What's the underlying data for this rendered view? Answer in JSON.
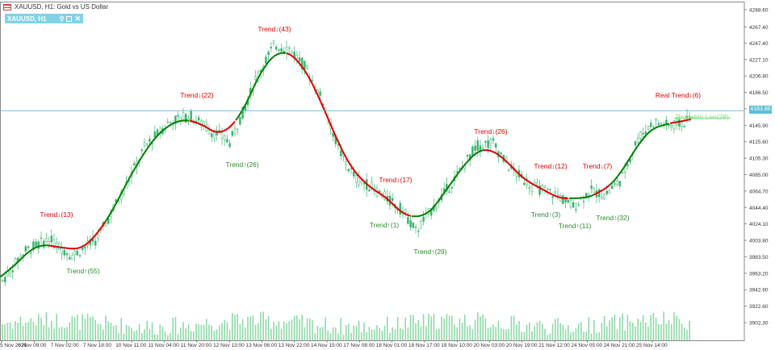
{
  "header": {
    "title": "XAUUSD, H1:  Gold vs US Dollar",
    "indicator_label": "XAUUSD, H1"
  },
  "icons": {
    "menu": "chart-menu-icon",
    "pin": "pin-icon",
    "maximize": "maximize-icon",
    "close": "close-icon"
  },
  "colors": {
    "uptrend": "#008000",
    "downtrend": "#e00000",
    "up_label": "#2e8b2e",
    "down_label": "#d42020",
    "candle": "#3cb371",
    "volume": "#8fd9a8",
    "price_line": "#5bbfd6",
    "probable_label": "#7be07b"
  },
  "price_tag": "4163.86",
  "chart_data": {
    "type": "candlestick",
    "symbol": "XAUUSD",
    "timeframe": "H1",
    "y_ticks": [
      "4288.60",
      "4267.40",
      "4247.40",
      "4227.10",
      "4206.80",
      "4186.50",
      "4166.20",
      "4145.90",
      "4125.60",
      "4105.30",
      "4085.00",
      "4064.70",
      "4044.40",
      "4024.10",
      "4003.80",
      "3983.50",
      "3963.20",
      "3942.90",
      "3922.60",
      "3902.30"
    ],
    "x_ticks": [
      "5 Nov 2025",
      "6 Nov 09:00",
      "7 Nov 02:00",
      "7 Nov 18:00",
      "10 Nov 11:00",
      "11 Nov 04:00",
      "11 Nov 20:00",
      "12 Nov 13:00",
      "13 Nov 06:00",
      "13 Nov 22:00",
      "14 Nov 15:00",
      "17 Nov 08:00",
      "18 Nov 01:00",
      "18 Nov 17:00",
      "19 Nov 10:00",
      "20 Nov 03:00",
      "20 Nov 19:00",
      "21 Nov 12:00",
      "24 Nov 05:00",
      "24 Nov 21:00",
      "25 Nov 14:00"
    ],
    "current_price": 4163.86,
    "annotations": [
      {
        "text": "Trend↓(13)",
        "dir": "down",
        "time": "6 Nov 09:00",
        "price": 4022
      },
      {
        "text": "Trend↑(55)",
        "dir": "up",
        "time": "7 Nov 02:00",
        "price": 3975
      },
      {
        "text": "Trend↓(22)",
        "dir": "down",
        "time": "11 Nov 04:00",
        "price": 4182
      },
      {
        "text": "Trend↑(26)",
        "dir": "up",
        "time": "11 Nov 20:00",
        "price": 4110
      },
      {
        "text": "Trend↓(43)",
        "dir": "down",
        "time": "13 Nov 06:00",
        "price": 4262
      },
      {
        "text": "Trend↓(17)",
        "dir": "down",
        "time": "17 Nov 08:00",
        "price": 4080
      },
      {
        "text": "Trend↑(1)",
        "dir": "up",
        "time": "17 Nov 08:00",
        "price": 4018
      },
      {
        "text": "Trend↑(29)",
        "dir": "up",
        "time": "18 Nov 01:00",
        "price": 3995
      },
      {
        "text": "Trend↓(26)",
        "dir": "down",
        "time": "19 Nov 10:00",
        "price": 4140
      },
      {
        "text": "Trend↓(12)",
        "dir": "down",
        "time": "20 Nov 19:00",
        "price": 4100
      },
      {
        "text": "Trend↑(3)",
        "dir": "up",
        "time": "20 Nov 19:00",
        "price": 4032
      },
      {
        "text": "Trend↑(11)",
        "dir": "up",
        "time": "21 Nov 12:00",
        "price": 4018
      },
      {
        "text": "Trend↓(7)",
        "dir": "down",
        "time": "24 Nov 05:00",
        "price": 4100
      },
      {
        "text": "Trend↑(32)",
        "dir": "up",
        "time": "24 Nov 05:00",
        "price": 4030
      },
      {
        "text": "Real Trend↓(6)",
        "dir": "down",
        "time": "25 Nov 14:00",
        "price": 4182
      },
      {
        "text": "Probable Len(28)",
        "dir": "probable",
        "time": "25 Nov 14:00",
        "price": 4162
      }
    ]
  }
}
